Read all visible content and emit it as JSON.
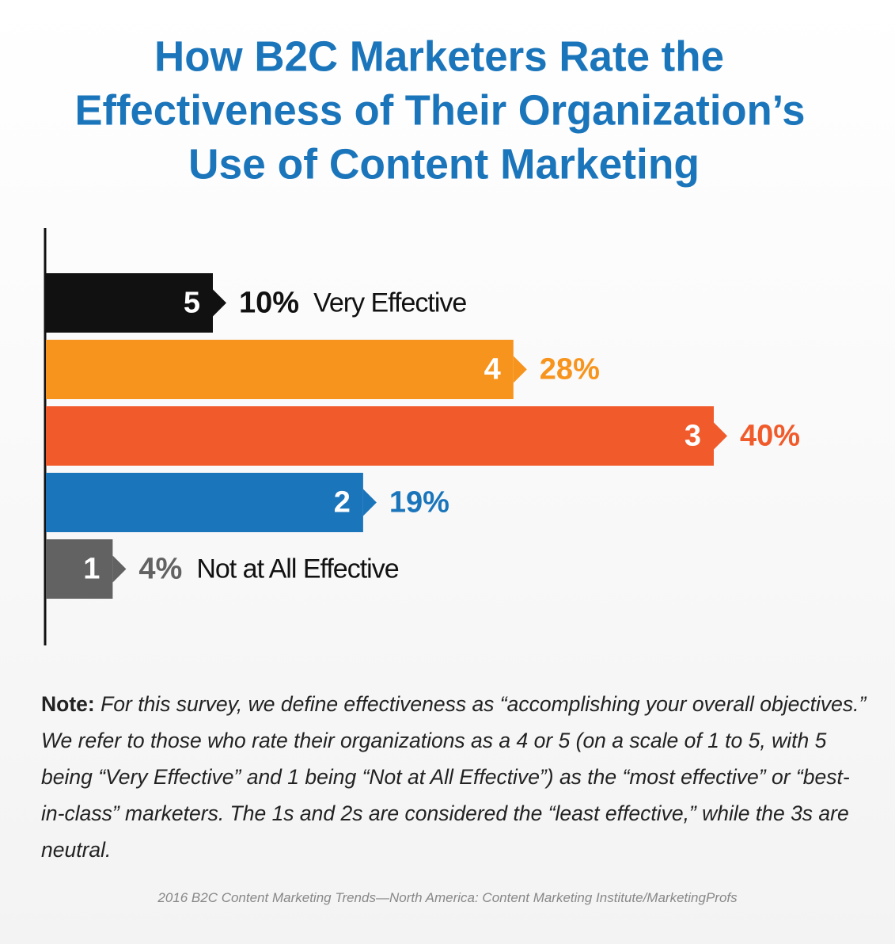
{
  "chart_data": {
    "type": "bar",
    "orientation": "horizontal",
    "title": [
      "How B2C Marketers Rate the",
      "Effectiveness of Their Organization’s",
      "Use of Content Marketing"
    ],
    "categories": [
      "5",
      "4",
      "3",
      "2",
      "1"
    ],
    "descriptions": [
      "Very Effective",
      null,
      null,
      null,
      "Not at All Effective"
    ],
    "values": [
      10,
      28,
      40,
      19,
      4
    ],
    "value_labels": [
      "10%",
      "28%",
      "40%",
      "19%",
      "4%"
    ],
    "colors": [
      "#111111",
      "#f7941d",
      "#f15a2b",
      "#1b75bb",
      "#626262"
    ],
    "xlim": [
      0,
      40
    ],
    "note_label": "Note:",
    "note": "For this survey, we define effectiveness as “accomplishing your overall objectives.” We refer to those who rate their organizations as a 4 or 5 (on a scale of 1 to 5, with 5 being “Very Effective” and 1 being “Not at All Effective”) as the “most effective” or “best-in-class” marketers. The 1s and 2s are considered the “least effective,” while the 3s are neutral.",
    "source": "2016 B2C Content Marketing Trends—North America: Content Marketing Institute/MarketingProfs"
  }
}
